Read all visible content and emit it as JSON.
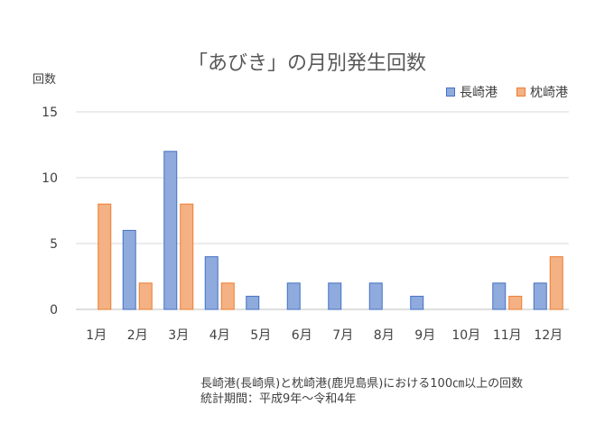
{
  "chart_data": {
    "type": "bar",
    "title": "「あびき」の月別発生回数",
    "ylabel": "回数",
    "xlabel": "",
    "categories": [
      "1月",
      "2月",
      "3月",
      "4月",
      "5月",
      "6月",
      "7月",
      "8月",
      "9月",
      "10月",
      "11月",
      "12月"
    ],
    "series": [
      {
        "name": "長崎港",
        "values": [
          0,
          6,
          12,
          4,
          1,
          2,
          2,
          2,
          1,
          0,
          2,
          2
        ],
        "color": "#8faadc",
        "stroke": "#4472c4"
      },
      {
        "name": "枕崎港",
        "values": [
          8,
          2,
          8,
          2,
          0,
          0,
          0,
          0,
          0,
          0,
          1,
          4
        ],
        "color": "#f4b183",
        "stroke": "#ed7d31"
      }
    ],
    "ylim": [
      0,
      15
    ],
    "yticks": [
      0,
      5,
      10,
      15
    ],
    "grid": true,
    "legend_position": "top-right"
  },
  "notes": [
    "長崎港(長崎県)と枕崎港(鹿児島県)における100㎝以上の回数",
    "統計期間：平成9年～令和4年"
  ]
}
